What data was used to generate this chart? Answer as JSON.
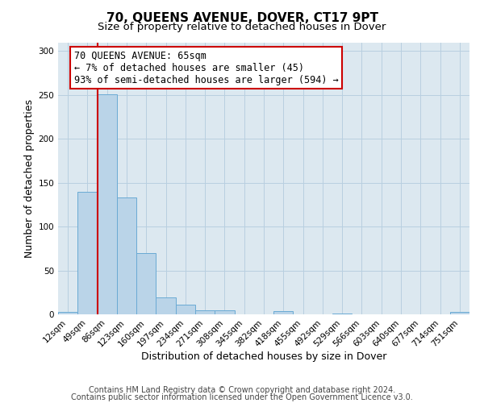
{
  "title": "70, QUEENS AVENUE, DOVER, CT17 9PT",
  "subtitle": "Size of property relative to detached houses in Dover",
  "xlabel": "Distribution of detached houses by size in Dover",
  "ylabel": "Number of detached properties",
  "bar_labels": [
    "12sqm",
    "49sqm",
    "86sqm",
    "123sqm",
    "160sqm",
    "197sqm",
    "234sqm",
    "271sqm",
    "308sqm",
    "345sqm",
    "382sqm",
    "418sqm",
    "455sqm",
    "492sqm",
    "529sqm",
    "566sqm",
    "603sqm",
    "640sqm",
    "677sqm",
    "714sqm",
    "751sqm"
  ],
  "bar_values": [
    3,
    140,
    251,
    133,
    70,
    19,
    11,
    5,
    5,
    0,
    0,
    4,
    0,
    0,
    1,
    0,
    0,
    0,
    0,
    0,
    3
  ],
  "bar_color": "#bad4e8",
  "bar_edge_color": "#6aaad4",
  "ylim": [
    0,
    310
  ],
  "yticks": [
    0,
    50,
    100,
    150,
    200,
    250,
    300
  ],
  "vline_x_index": 2,
  "vline_color": "#cc0000",
  "annotation_line1": "70 QUEENS AVENUE: 65sqm",
  "annotation_line2": "← 7% of detached houses are smaller (45)",
  "annotation_line3": "93% of semi-detached houses are larger (594) →",
  "annotation_box_facecolor": "#ffffff",
  "annotation_box_edgecolor": "#cc0000",
  "footer_line1": "Contains HM Land Registry data © Crown copyright and database right 2024.",
  "footer_line2": "Contains public sector information licensed under the Open Government Licence v3.0.",
  "bg_color": "#ffffff",
  "plot_bg_color": "#dce8f0",
  "grid_color": "#b8cfe0",
  "title_fontsize": 11,
  "subtitle_fontsize": 9.5,
  "axis_label_fontsize": 9,
  "tick_fontsize": 7.5,
  "annotation_fontsize": 8.5,
  "footer_fontsize": 7
}
